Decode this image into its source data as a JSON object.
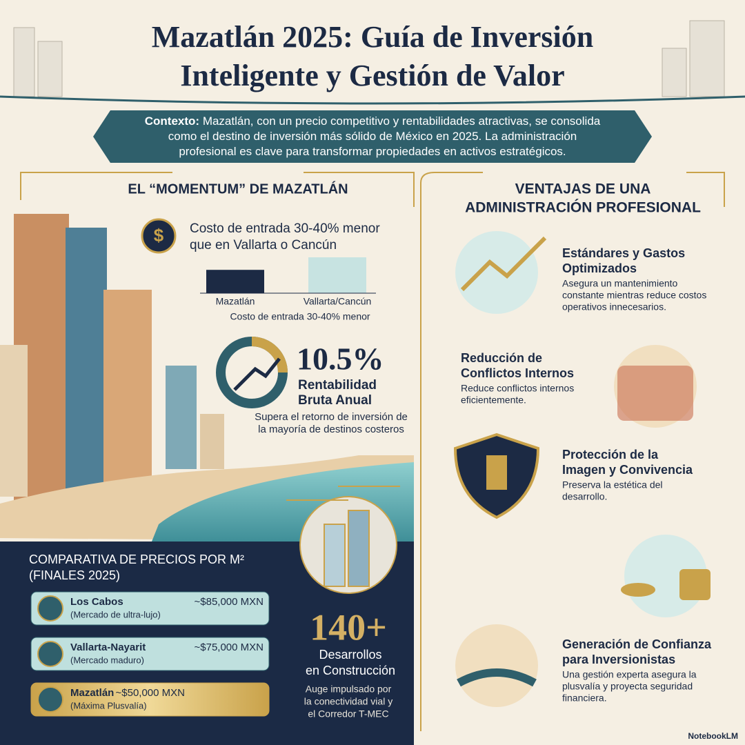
{
  "header": {
    "title": [
      "Mazatlán 2025: Guía de Inversión",
      "Inteligente y Gestión de Valor"
    ]
  },
  "context": {
    "label": "Contexto:",
    "lines": [
      "Mazatlán, con un precio competitivo y rentabilidades atractivas, se consolida",
      "como el destino de inversión más sólido de México en 2025. La administración",
      "profesional es clave para transformar propiedades en activos estratégicos."
    ]
  },
  "momentum": {
    "heading": "EL “MOMENTUM” DE MAZATLÁN",
    "entry_cost": {
      "lines": [
        "Costo de entrada 30-40% menor",
        "que en Vallarta o Cancún"
      ]
    },
    "entry_chart": {
      "categories": [
        "Mazatlán",
        "Vallarta/Cancún"
      ],
      "values": [
        65,
        100
      ],
      "colors": [
        "#1c2a44",
        "#c7e3e1"
      ],
      "caption": "Costo de entrada 30-40% menor"
    },
    "return": {
      "value": "10.5%",
      "label": [
        "Rentabilidad",
        "Bruta Anual"
      ],
      "description": [
        "Supera el retorno de inversión de",
        "la mayoría de destinos costeros"
      ]
    }
  },
  "prices": {
    "title": [
      "COMPARATIVA DE PRECIOS POR M²",
      "(FINALES 2025)"
    ],
    "rows": [
      {
        "name": "Los Cabos",
        "note": "(Mercado de ultra-lujo)",
        "price": "~$85,000 MXN"
      },
      {
        "name": "Vallarta-Nayarit",
        "note": "(Mercado maduro)",
        "price": "~$75,000 MXN"
      },
      {
        "name": "Mazatlán",
        "note": "(Máxima Plusvalía)",
        "price": "~$50,000 MXN"
      }
    ]
  },
  "construction": {
    "value": "140+",
    "label": [
      "Desarrollos",
      "en Construcción"
    ],
    "description": [
      "Auge impulsado por",
      "la conectividad vial y",
      "el Corredor T-MEC"
    ]
  },
  "advantages": {
    "heading": [
      "VENTAJAS DE UNA",
      "ADMINISTRACIÓN PROFESIONAL"
    ],
    "items": [
      {
        "title": [
          "Estándares y Gastos",
          "Optimizados"
        ],
        "description": [
          "Asegura un mantenimiento",
          "constante mientras reduce costos",
          "operativos innecesarios."
        ]
      },
      {
        "title": [
          "Reducción de",
          "Conflictos Internos"
        ],
        "description": [
          "Reduce conflictos internos",
          "eficientemente."
        ]
      },
      {
        "title": [
          "Protección de la",
          "Imagen y Convivencia"
        ],
        "description": [
          "Preserva la estética del",
          "desarrollo."
        ]
      },
      {
        "title": [
          "Generación de Confianza",
          "para Inversionistas"
        ],
        "description": [
          "Una gestión experta asegura la",
          "plusvalía y proyecta seguridad",
          "financiera."
        ]
      }
    ]
  },
  "footer": {
    "brand": "NotebookLM"
  }
}
